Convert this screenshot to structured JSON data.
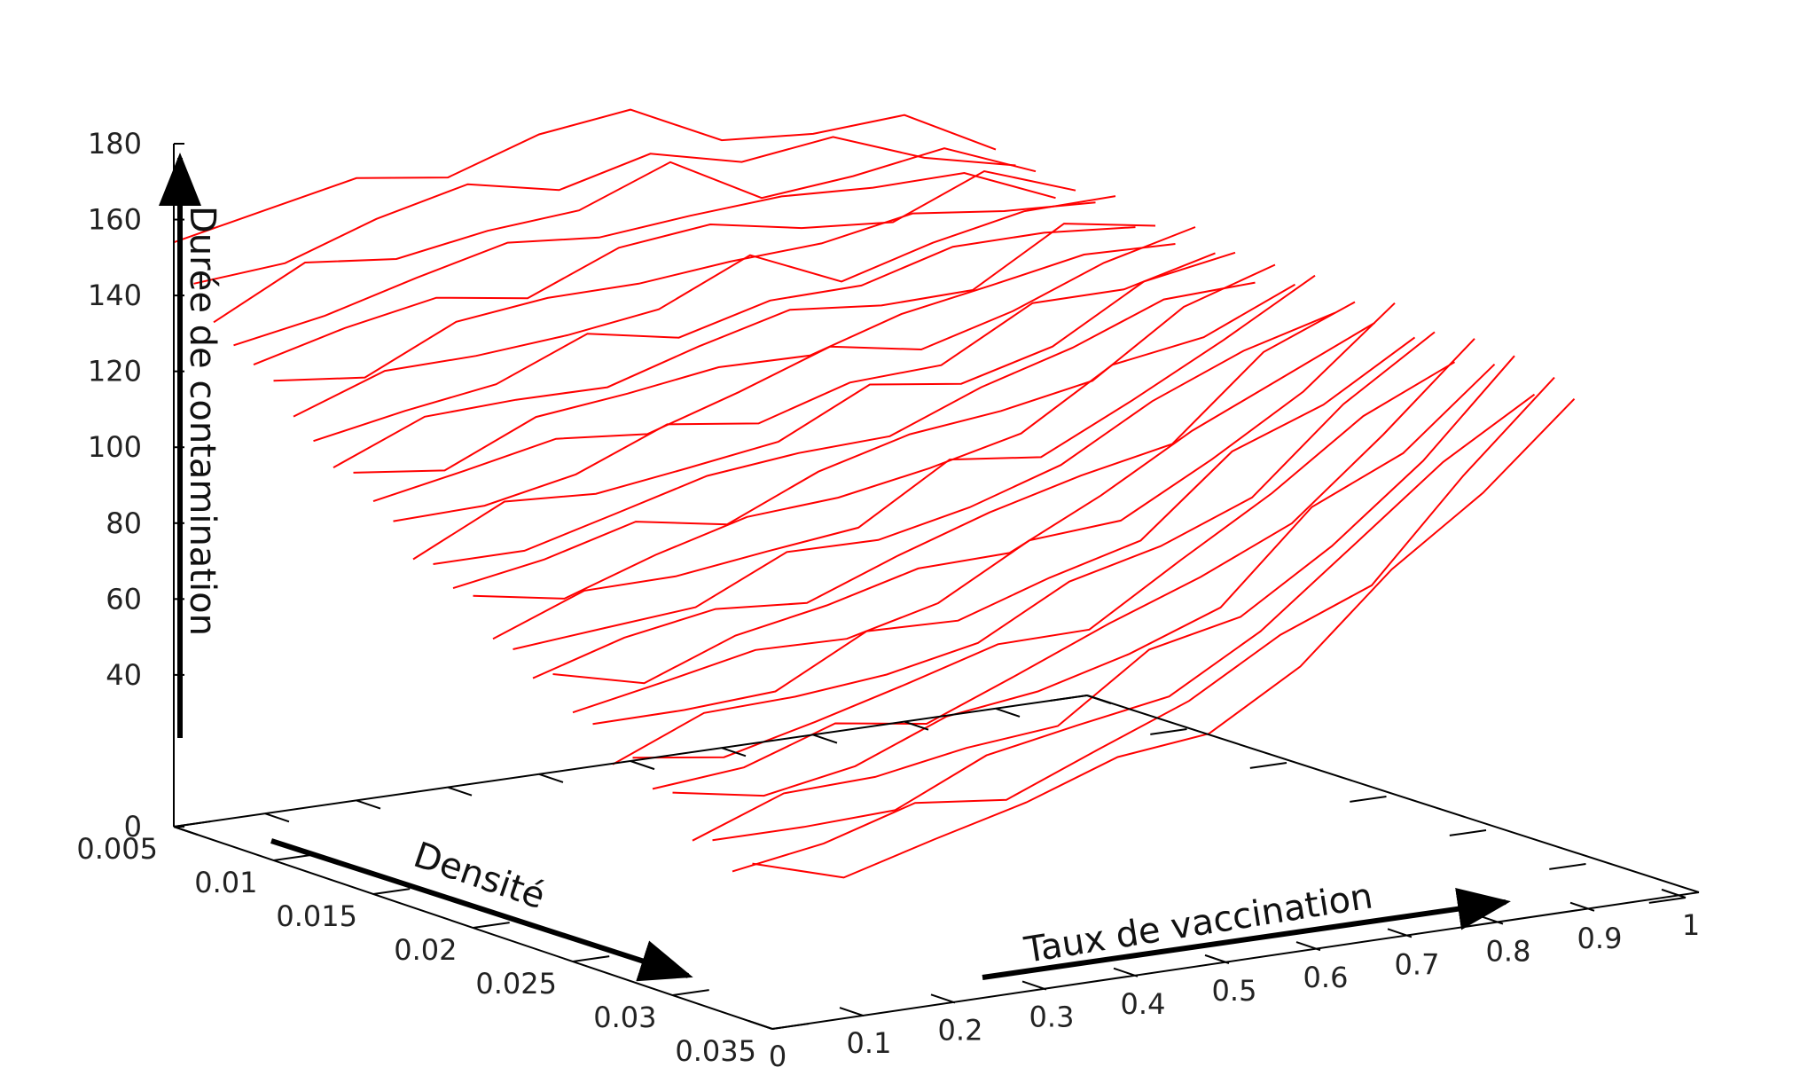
{
  "chart_data": {
    "type": "surface3d",
    "title": "",
    "zlabel": "Durée de contamination",
    "xlabel": "Densité",
    "ylabel": "Taux de vaccination",
    "density_ticks": [
      "0.005",
      "0.01",
      "0.015",
      "0.02",
      "0.025",
      "0.03",
      "0.035"
    ],
    "vaccination_ticks": [
      "0",
      "0.1",
      "0.2",
      "0.3",
      "0.4",
      "0.5",
      "0.6",
      "0.7",
      "0.8",
      "0.9",
      "1"
    ],
    "z_ticks": [
      "0",
      "40",
      "60",
      "80",
      "100",
      "120",
      "140",
      "160",
      "180"
    ],
    "zlim": [
      0,
      180
    ],
    "density_range": [
      0.005,
      0.035
    ],
    "vaccination_range": [
      0,
      1
    ],
    "series_color": "#ff0000",
    "density_values": [
      0.005,
      0.006,
      0.007,
      0.008,
      0.009,
      0.01,
      0.011,
      0.012,
      0.013,
      0.014,
      0.015,
      0.016,
      0.017,
      0.018,
      0.019,
      0.02,
      0.021,
      0.022,
      0.023,
      0.024,
      0.025,
      0.026,
      0.027,
      0.028,
      0.029,
      0.03,
      0.031,
      0.032,
      0.033,
      0.034
    ],
    "vaccination_values": [
      0,
      0.1,
      0.2,
      0.3,
      0.4,
      0.5,
      0.6,
      0.7,
      0.8,
      0.9
    ],
    "z_low_density": [
      152,
      158,
      163,
      165,
      166,
      170,
      162,
      160,
      158,
      145
    ],
    "z_high_density": [
      37,
      38,
      42,
      47,
      53,
      62,
      74,
      92,
      112,
      135
    ]
  }
}
